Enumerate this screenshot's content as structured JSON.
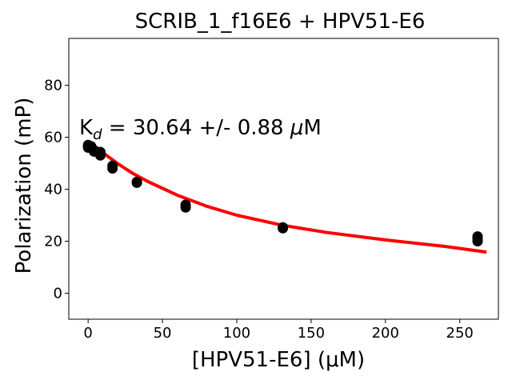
{
  "chart_data": {
    "type": "scatter",
    "title": "SCRIB_1_f16E6 + HPV51-E6",
    "xlabel": "[HPV51-E6] (μM)",
    "ylabel": "Polarization (mP)",
    "xlim": [
      -13,
      276
    ],
    "ylim": [
      -10,
      98
    ],
    "xticks": [
      0,
      50,
      100,
      150,
      200,
      250
    ],
    "yticks": [
      0,
      20,
      40,
      60,
      80
    ],
    "grid": false,
    "annotation": {
      "prefix": "K",
      "subscript": "d",
      "text": " = 30.64 +/- 0.88 ",
      "unit_symbol": "μ",
      "unit": "M"
    },
    "series": [
      {
        "kind": "points",
        "color": "#000000",
        "points": [
          [
            0,
            56
          ],
          [
            0,
            56.5
          ],
          [
            0,
            57
          ],
          [
            2,
            56
          ],
          [
            2,
            56.5
          ],
          [
            4,
            54.5
          ],
          [
            4,
            55
          ],
          [
            8.2,
            53
          ],
          [
            8.2,
            53.8
          ],
          [
            8.2,
            54.3
          ],
          [
            16.4,
            48
          ],
          [
            16.4,
            49
          ],
          [
            32.8,
            42.5
          ],
          [
            32.8,
            42.8
          ],
          [
            65.6,
            33
          ],
          [
            65.6,
            34
          ],
          [
            131,
            25
          ],
          [
            131,
            25.3
          ],
          [
            262,
            20
          ],
          [
            262,
            21
          ],
          [
            262,
            21.8
          ]
        ]
      },
      {
        "kind": "fit",
        "color": "#ff0000",
        "x_range": [
          0,
          268
        ],
        "x": [
          0,
          10,
          20,
          30,
          40,
          60,
          80,
          100,
          130,
          160,
          200,
          240,
          268
        ],
        "y": [
          58.5,
          54,
          49.8,
          46.1,
          43,
          37.7,
          33.4,
          30,
          26.2,
          23.4,
          20.5,
          18,
          15.8
        ]
      }
    ]
  }
}
